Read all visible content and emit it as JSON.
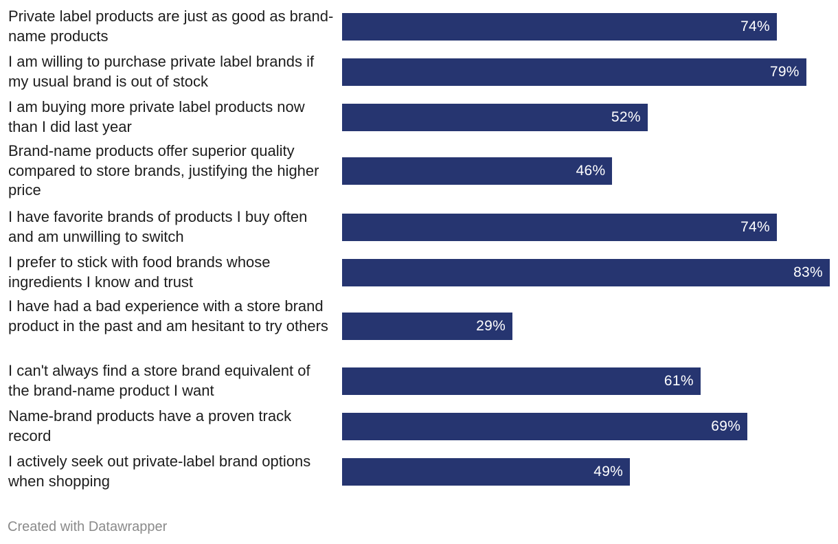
{
  "chart_data": {
    "type": "bar",
    "orientation": "horizontal",
    "xlim": [
      0,
      83
    ],
    "value_suffix": "%",
    "colors": {
      "bar": "#263570",
      "value_label": "#ffffff"
    },
    "categories": [
      "Private label products are just as good as brand-name products",
      "I am willing to purchase private label brands if my usual brand is out of stock",
      "I am buying more private label products now than I did last year",
      "Brand-name products offer superior quality compared to store brands, justifying the higher price",
      "I have favorite brands of products I buy often and am unwilling to switch",
      "I prefer to stick with food brands whose ingredients I know and trust",
      "I have had a bad experience with a store brand product in the past and am hesitant to try others",
      "I can't always find a store brand equivalent of the brand-name product I want",
      "Name-brand products have a proven track record",
      "I actively seek out private-label brand options when shopping"
    ],
    "values": [
      74,
      79,
      52,
      46,
      74,
      83,
      29,
      61,
      69,
      49
    ],
    "value_labels": [
      "74%",
      "79%",
      "52%",
      "46%",
      "74%",
      "83%",
      "29%",
      "61%",
      "69%",
      "49%"
    ]
  },
  "footer": {
    "credit": "Created with Datawrapper"
  }
}
